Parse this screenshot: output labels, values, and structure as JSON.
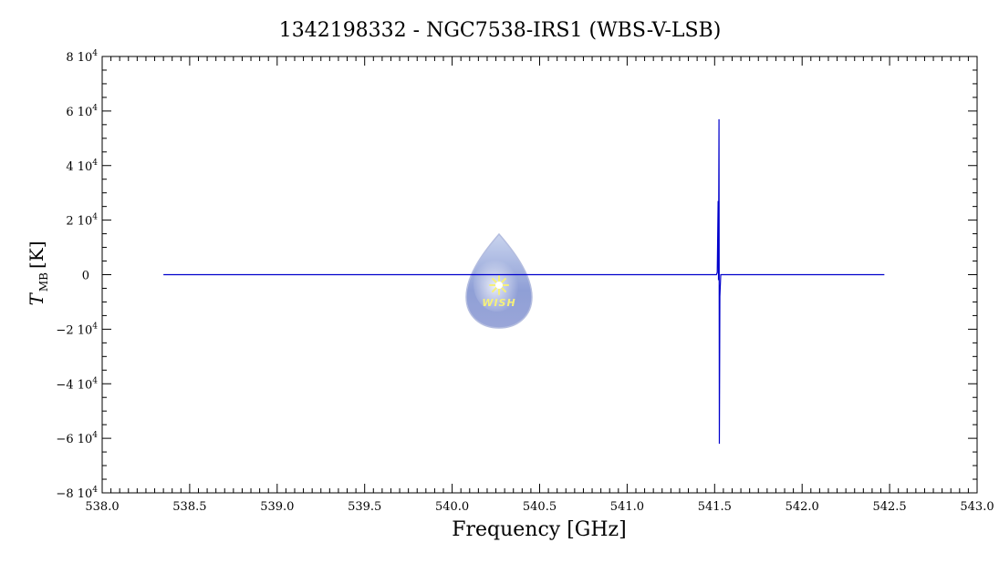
{
  "chart_data": {
    "type": "line",
    "title": "1342198332 - NGC7538-IRS1 (WBS-V-LSB)",
    "xlabel": "Frequency [GHz]",
    "ylabel_main": "T",
    "ylabel_sub": "MB",
    "ylabel_unit": "[K]",
    "xlim": [
      538.0,
      543.0
    ],
    "ylim": [
      -80000,
      80000
    ],
    "x_ticks": [
      538.0,
      538.5,
      539.0,
      539.5,
      540.0,
      540.5,
      541.0,
      541.5,
      542.0,
      542.5,
      543.0
    ],
    "x_tick_labels": [
      "538.0",
      "538.5",
      "539.0",
      "539.5",
      "540.0",
      "540.5",
      "541.0",
      "541.5",
      "542.0",
      "542.5",
      "543.0"
    ],
    "y_ticks": [
      -80000,
      -60000,
      -40000,
      -20000,
      0,
      20000,
      40000,
      60000,
      80000
    ],
    "y_tick_labels": [
      {
        "mant": "−8 10",
        "exp": "4"
      },
      {
        "mant": "−6 10",
        "exp": "4"
      },
      {
        "mant": "−4 10",
        "exp": "4"
      },
      {
        "mant": "−2 10",
        "exp": "4"
      },
      {
        "mant": "0",
        "exp": ""
      },
      {
        "mant": "2 10",
        "exp": "4"
      },
      {
        "mant": "4 10",
        "exp": "4"
      },
      {
        "mant": "6 10",
        "exp": "4"
      },
      {
        "mant": "8 10",
        "exp": "4"
      }
    ],
    "grid": false,
    "series": [
      {
        "color": "#0000cc",
        "x": [
          538.35,
          541.51,
          541.515,
          541.52,
          541.522,
          541.525,
          541.527,
          541.53,
          541.535,
          542.47
        ],
        "y": [
          0,
          0,
          800,
          27000,
          -2000,
          57000,
          -62000,
          -8000,
          0,
          0
        ]
      }
    ],
    "watermark": {
      "label": "WISH",
      "x": 540.27,
      "y": -2000
    }
  }
}
